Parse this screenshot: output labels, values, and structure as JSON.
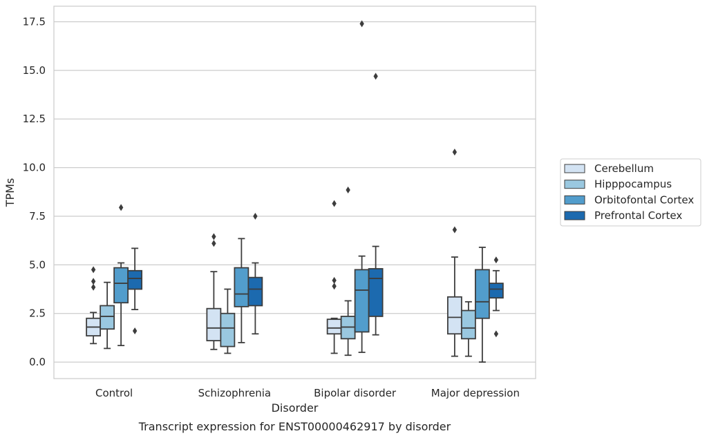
{
  "chart_data": {
    "type": "boxplot",
    "caption": "Transcript expression for ENST00000462917 by disorder",
    "xlabel": "Disorder",
    "ylabel": "TPMs",
    "ylim": [
      -0.85,
      18.3
    ],
    "yticks": [
      "0.0",
      "2.5",
      "5.0",
      "7.5",
      "10.0",
      "12.5",
      "15.0",
      "17.5"
    ],
    "ytick_values": [
      0,
      2.5,
      5,
      7.5,
      10,
      12.5,
      15,
      17.5
    ],
    "grid": "horizontal",
    "legend_position": "right",
    "categories": [
      "Control",
      "Schizophrenia",
      "Bipolar disorder",
      "Major depression"
    ],
    "series": [
      {
        "name": "Cerebellum",
        "color": "#d3e3f3",
        "boxes": [
          {
            "whislo": 0.95,
            "q1": 1.35,
            "med": 1.8,
            "q3": 2.25,
            "whishi": 2.55,
            "fliers": [
              3.85,
              4.15,
              4.75
            ]
          },
          {
            "whislo": 0.65,
            "q1": 1.1,
            "med": 1.75,
            "q3": 2.75,
            "whishi": 4.65,
            "fliers": [
              6.1,
              6.45
            ]
          },
          {
            "whislo": 0.45,
            "q1": 1.45,
            "med": 1.75,
            "q3": 2.2,
            "whishi": 2.25,
            "fliers": [
              3.9,
              4.2,
              8.15
            ]
          },
          {
            "whislo": 0.3,
            "q1": 1.45,
            "med": 2.3,
            "q3": 3.35,
            "whishi": 5.4,
            "fliers": [
              6.8,
              10.8
            ]
          }
        ]
      },
      {
        "name": "Hipppocampus",
        "color": "#9ac8e0",
        "boxes": [
          {
            "whislo": 0.7,
            "q1": 1.7,
            "med": 2.35,
            "q3": 2.9,
            "whishi": 4.1,
            "fliers": []
          },
          {
            "whislo": 0.45,
            "q1": 0.8,
            "med": 1.75,
            "q3": 2.5,
            "whishi": 3.75,
            "fliers": []
          },
          {
            "whislo": 0.35,
            "q1": 1.2,
            "med": 1.8,
            "q3": 2.35,
            "whishi": 3.15,
            "fliers": [
              8.85
            ]
          },
          {
            "whislo": 0.3,
            "q1": 1.2,
            "med": 1.75,
            "q3": 2.65,
            "whishi": 3.1,
            "fliers": []
          }
        ]
      },
      {
        "name": "Orbitofontal Cortex",
        "color": "#529dcc",
        "boxes": [
          {
            "whislo": 0.85,
            "q1": 3.05,
            "med": 4.05,
            "q3": 4.85,
            "whishi": 5.1,
            "fliers": [
              7.95
            ]
          },
          {
            "whislo": 1.0,
            "q1": 2.85,
            "med": 3.5,
            "q3": 4.85,
            "whishi": 6.35,
            "fliers": []
          },
          {
            "whislo": 0.5,
            "q1": 1.55,
            "med": 3.7,
            "q3": 4.75,
            "whishi": 5.45,
            "fliers": [
              17.4
            ]
          },
          {
            "whislo": 0.0,
            "q1": 2.25,
            "med": 3.1,
            "q3": 4.75,
            "whishi": 5.9,
            "fliers": []
          }
        ]
      },
      {
        "name": "Prefrontal Cortex",
        "color": "#1c6aaf",
        "boxes": [
          {
            "whislo": 2.7,
            "q1": 3.75,
            "med": 4.3,
            "q3": 4.7,
            "whishi": 5.85,
            "fliers": [
              1.6
            ]
          },
          {
            "whislo": 1.45,
            "q1": 2.9,
            "med": 3.75,
            "q3": 4.35,
            "whishi": 5.1,
            "fliers": [
              7.5
            ]
          },
          {
            "whislo": 1.4,
            "q1": 2.35,
            "med": 4.3,
            "q3": 4.8,
            "whishi": 5.95,
            "fliers": [
              14.7
            ]
          },
          {
            "whislo": 2.65,
            "q1": 3.3,
            "med": 3.75,
            "q3": 4.05,
            "whishi": 4.7,
            "fliers": [
              1.45,
              5.25
            ]
          }
        ]
      }
    ]
  }
}
